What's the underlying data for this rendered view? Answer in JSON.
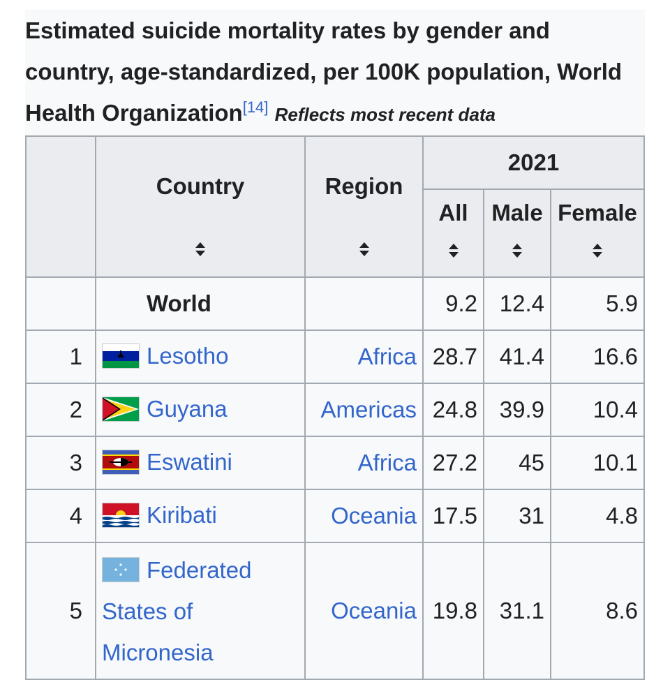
{
  "caption": {
    "title": "Estimated suicide mortality rates by gender and country, age-standardized, per 100K population, World Health Organization",
    "ref": "[14]",
    "note": "Reflects most recent data"
  },
  "headers": {
    "country": "Country",
    "region": "Region",
    "year": "2021",
    "all": "All",
    "male": "Male",
    "female": "Female"
  },
  "world": {
    "name": "World",
    "all": "9.2",
    "male": "12.4",
    "female": "5.9"
  },
  "rows": [
    {
      "rank": "1",
      "country": "Lesotho",
      "region": "Africa",
      "all": "28.7",
      "male": "41.4",
      "female": "16.6",
      "flag": "lesotho-flag"
    },
    {
      "rank": "2",
      "country": "Guyana",
      "region": "Americas",
      "all": "24.8",
      "male": "39.9",
      "female": "10.4",
      "flag": "guyana-flag"
    },
    {
      "rank": "3",
      "country": "Eswatini",
      "region": "Africa",
      "all": "27.2",
      "male": "45",
      "female": "10.1",
      "flag": "eswatini-flag"
    },
    {
      "rank": "4",
      "country": "Kiribati",
      "region": "Oceania",
      "all": "17.5",
      "male": "31",
      "female": "4.8",
      "flag": "kiribati-flag"
    },
    {
      "rank": "5",
      "country": "Federated States of Micronesia",
      "region": "Oceania",
      "all": "19.8",
      "male": "31.1",
      "female": "8.6",
      "flag": "micronesia-flag"
    }
  ]
}
